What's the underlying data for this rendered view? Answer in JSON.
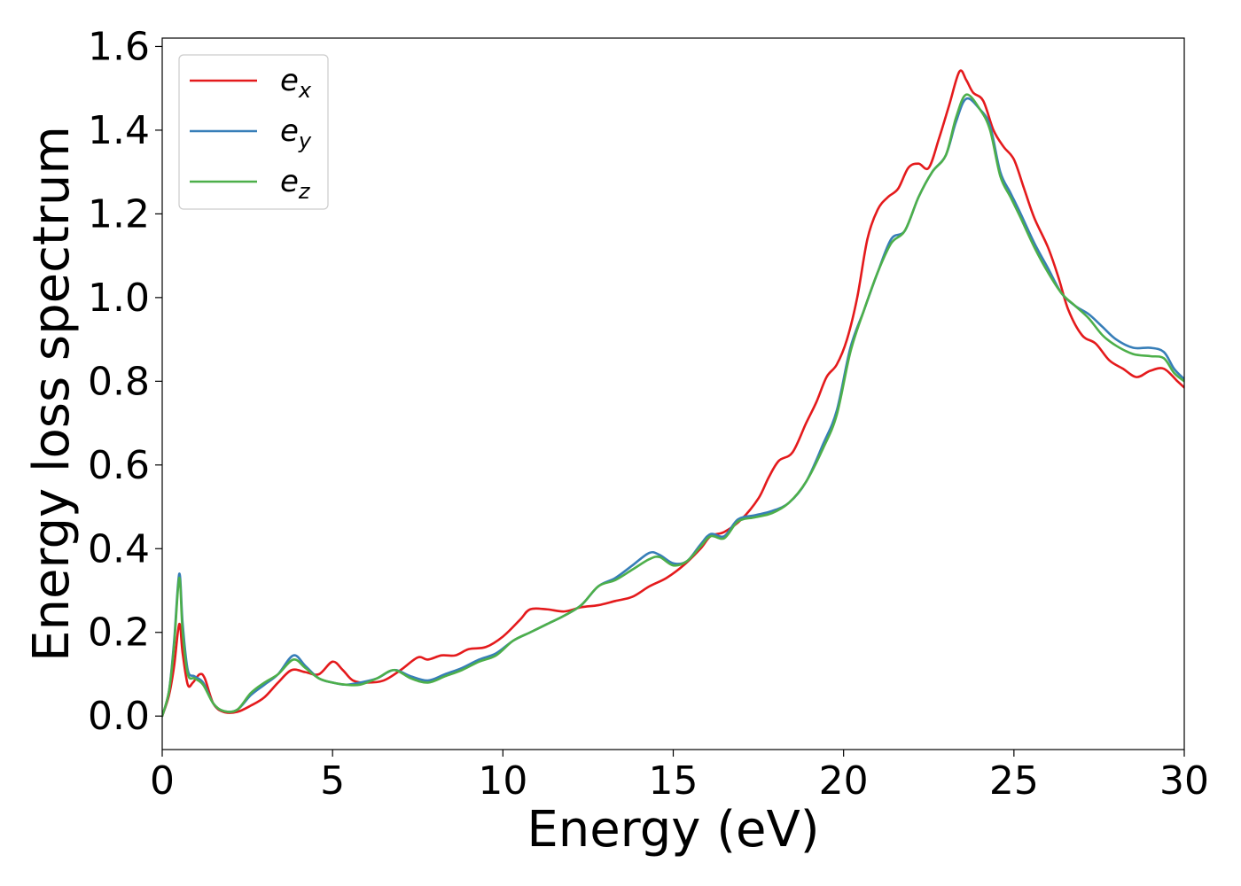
{
  "chart_data": {
    "type": "line",
    "title": "",
    "xlabel": "Energy (eV)",
    "ylabel": "Energy loss spectrum",
    "xlim": [
      0,
      30
    ],
    "ylim": [
      -0.08,
      1.62
    ],
    "xticks": [
      0,
      5,
      10,
      15,
      20,
      25,
      30
    ],
    "xtick_labels": [
      "0",
      "5",
      "10",
      "15",
      "20",
      "25",
      "30"
    ],
    "yticks": [
      0.0,
      0.2,
      0.4,
      0.6,
      0.8,
      1.0,
      1.2,
      1.4,
      1.6
    ],
    "ytick_labels": [
      "0.0",
      "0.2",
      "0.4",
      "0.6",
      "0.8",
      "1.0",
      "1.2",
      "1.4",
      "1.6"
    ],
    "grid": false,
    "legend_position": "top-left",
    "series": [
      {
        "name": "e",
        "subscript": "x",
        "color": "#e41a1c",
        "points": [
          [
            0,
            0.0
          ],
          [
            0.2,
            0.05
          ],
          [
            0.35,
            0.12
          ],
          [
            0.5,
            0.22
          ],
          [
            0.6,
            0.15
          ],
          [
            0.75,
            0.075
          ],
          [
            0.9,
            0.08
          ],
          [
            1.1,
            0.1
          ],
          [
            1.25,
            0.09
          ],
          [
            1.5,
            0.03
          ],
          [
            1.8,
            0.01
          ],
          [
            2.2,
            0.01
          ],
          [
            2.6,
            0.025
          ],
          [
            3.0,
            0.045
          ],
          [
            3.4,
            0.08
          ],
          [
            3.8,
            0.11
          ],
          [
            4.2,
            0.105
          ],
          [
            4.6,
            0.1
          ],
          [
            5.0,
            0.13
          ],
          [
            5.3,
            0.11
          ],
          [
            5.6,
            0.085
          ],
          [
            6.0,
            0.08
          ],
          [
            6.5,
            0.085
          ],
          [
            7.0,
            0.11
          ],
          [
            7.5,
            0.14
          ],
          [
            7.8,
            0.135
          ],
          [
            8.2,
            0.145
          ],
          [
            8.6,
            0.145
          ],
          [
            9.0,
            0.16
          ],
          [
            9.5,
            0.165
          ],
          [
            10.0,
            0.19
          ],
          [
            10.5,
            0.23
          ],
          [
            10.8,
            0.255
          ],
          [
            11.3,
            0.255
          ],
          [
            11.8,
            0.25
          ],
          [
            12.3,
            0.26
          ],
          [
            12.8,
            0.265
          ],
          [
            13.3,
            0.275
          ],
          [
            13.8,
            0.285
          ],
          [
            14.3,
            0.31
          ],
          [
            14.8,
            0.33
          ],
          [
            15.3,
            0.36
          ],
          [
            15.8,
            0.4
          ],
          [
            16.1,
            0.43
          ],
          [
            16.5,
            0.44
          ],
          [
            17.0,
            0.47
          ],
          [
            17.5,
            0.52
          ],
          [
            17.8,
            0.57
          ],
          [
            18.1,
            0.61
          ],
          [
            18.5,
            0.63
          ],
          [
            18.9,
            0.7
          ],
          [
            19.2,
            0.75
          ],
          [
            19.5,
            0.81
          ],
          [
            19.8,
            0.84
          ],
          [
            20.1,
            0.9
          ],
          [
            20.4,
            1.0
          ],
          [
            20.7,
            1.14
          ],
          [
            21.0,
            1.21
          ],
          [
            21.3,
            1.24
          ],
          [
            21.6,
            1.26
          ],
          [
            21.9,
            1.31
          ],
          [
            22.2,
            1.32
          ],
          [
            22.5,
            1.31
          ],
          [
            22.8,
            1.38
          ],
          [
            23.1,
            1.46
          ],
          [
            23.4,
            1.54
          ],
          [
            23.6,
            1.52
          ],
          [
            23.8,
            1.49
          ],
          [
            24.1,
            1.47
          ],
          [
            24.4,
            1.4
          ],
          [
            24.7,
            1.36
          ],
          [
            25.0,
            1.33
          ],
          [
            25.3,
            1.26
          ],
          [
            25.6,
            1.19
          ],
          [
            26.0,
            1.12
          ],
          [
            26.3,
            1.05
          ],
          [
            26.6,
            0.97
          ],
          [
            27.0,
            0.91
          ],
          [
            27.4,
            0.89
          ],
          [
            27.8,
            0.85
          ],
          [
            28.2,
            0.83
          ],
          [
            28.6,
            0.81
          ],
          [
            29.0,
            0.825
          ],
          [
            29.4,
            0.83
          ],
          [
            29.8,
            0.8
          ],
          [
            30.0,
            0.785
          ]
        ]
      },
      {
        "name": "e",
        "subscript": "y",
        "color": "#377eb8",
        "points": [
          [
            0,
            0.0
          ],
          [
            0.2,
            0.06
          ],
          [
            0.35,
            0.18
          ],
          [
            0.5,
            0.34
          ],
          [
            0.6,
            0.22
          ],
          [
            0.75,
            0.11
          ],
          [
            0.95,
            0.095
          ],
          [
            1.2,
            0.08
          ],
          [
            1.5,
            0.03
          ],
          [
            1.8,
            0.012
          ],
          [
            2.2,
            0.015
          ],
          [
            2.6,
            0.05
          ],
          [
            3.0,
            0.075
          ],
          [
            3.4,
            0.1
          ],
          [
            3.85,
            0.145
          ],
          [
            4.2,
            0.12
          ],
          [
            4.6,
            0.09
          ],
          [
            5.0,
            0.08
          ],
          [
            5.4,
            0.075
          ],
          [
            5.8,
            0.08
          ],
          [
            6.3,
            0.09
          ],
          [
            6.8,
            0.11
          ],
          [
            7.3,
            0.095
          ],
          [
            7.8,
            0.085
          ],
          [
            8.3,
            0.1
          ],
          [
            8.8,
            0.115
          ],
          [
            9.3,
            0.135
          ],
          [
            9.8,
            0.15
          ],
          [
            10.3,
            0.18
          ],
          [
            10.8,
            0.2
          ],
          [
            11.3,
            0.22
          ],
          [
            11.8,
            0.24
          ],
          [
            12.3,
            0.265
          ],
          [
            12.8,
            0.31
          ],
          [
            13.3,
            0.33
          ],
          [
            13.8,
            0.36
          ],
          [
            14.3,
            0.39
          ],
          [
            14.6,
            0.385
          ],
          [
            15.0,
            0.365
          ],
          [
            15.4,
            0.37
          ],
          [
            15.8,
            0.41
          ],
          [
            16.1,
            0.435
          ],
          [
            16.5,
            0.43
          ],
          [
            16.9,
            0.47
          ],
          [
            17.4,
            0.48
          ],
          [
            17.9,
            0.49
          ],
          [
            18.4,
            0.51
          ],
          [
            18.9,
            0.56
          ],
          [
            19.4,
            0.65
          ],
          [
            19.8,
            0.73
          ],
          [
            20.2,
            0.88
          ],
          [
            20.6,
            0.97
          ],
          [
            21.0,
            1.06
          ],
          [
            21.4,
            1.14
          ],
          [
            21.8,
            1.16
          ],
          [
            22.2,
            1.24
          ],
          [
            22.6,
            1.3
          ],
          [
            23.0,
            1.34
          ],
          [
            23.3,
            1.42
          ],
          [
            23.6,
            1.475
          ],
          [
            24.0,
            1.45
          ],
          [
            24.3,
            1.41
          ],
          [
            24.6,
            1.3
          ],
          [
            24.9,
            1.25
          ],
          [
            25.2,
            1.2
          ],
          [
            25.6,
            1.13
          ],
          [
            26.0,
            1.07
          ],
          [
            26.4,
            1.01
          ],
          [
            26.8,
            0.98
          ],
          [
            27.2,
            0.96
          ],
          [
            27.6,
            0.93
          ],
          [
            28.0,
            0.9
          ],
          [
            28.5,
            0.88
          ],
          [
            29.0,
            0.88
          ],
          [
            29.4,
            0.87
          ],
          [
            29.7,
            0.83
          ],
          [
            30.0,
            0.805
          ]
        ]
      },
      {
        "name": "e",
        "subscript": "z",
        "color": "#4daf4a",
        "points": [
          [
            0,
            0.0
          ],
          [
            0.2,
            0.06
          ],
          [
            0.35,
            0.17
          ],
          [
            0.5,
            0.33
          ],
          [
            0.6,
            0.2
          ],
          [
            0.75,
            0.1
          ],
          [
            0.95,
            0.09
          ],
          [
            1.2,
            0.075
          ],
          [
            1.5,
            0.03
          ],
          [
            1.8,
            0.012
          ],
          [
            2.2,
            0.015
          ],
          [
            2.6,
            0.055
          ],
          [
            3.0,
            0.08
          ],
          [
            3.4,
            0.1
          ],
          [
            3.85,
            0.135
          ],
          [
            4.2,
            0.115
          ],
          [
            4.6,
            0.09
          ],
          [
            5.0,
            0.08
          ],
          [
            5.4,
            0.075
          ],
          [
            5.8,
            0.075
          ],
          [
            6.3,
            0.09
          ],
          [
            6.8,
            0.11
          ],
          [
            7.3,
            0.09
          ],
          [
            7.8,
            0.08
          ],
          [
            8.3,
            0.095
          ],
          [
            8.8,
            0.11
          ],
          [
            9.3,
            0.13
          ],
          [
            9.8,
            0.145
          ],
          [
            10.3,
            0.18
          ],
          [
            10.8,
            0.2
          ],
          [
            11.3,
            0.22
          ],
          [
            11.8,
            0.24
          ],
          [
            12.3,
            0.265
          ],
          [
            12.8,
            0.31
          ],
          [
            13.3,
            0.325
          ],
          [
            13.8,
            0.35
          ],
          [
            14.3,
            0.375
          ],
          [
            14.6,
            0.38
          ],
          [
            15.0,
            0.36
          ],
          [
            15.4,
            0.37
          ],
          [
            15.8,
            0.405
          ],
          [
            16.1,
            0.43
          ],
          [
            16.5,
            0.425
          ],
          [
            16.9,
            0.465
          ],
          [
            17.4,
            0.475
          ],
          [
            17.9,
            0.485
          ],
          [
            18.4,
            0.51
          ],
          [
            18.9,
            0.56
          ],
          [
            19.4,
            0.64
          ],
          [
            19.8,
            0.72
          ],
          [
            20.2,
            0.87
          ],
          [
            20.6,
            0.97
          ],
          [
            21.0,
            1.06
          ],
          [
            21.4,
            1.13
          ],
          [
            21.8,
            1.16
          ],
          [
            22.2,
            1.24
          ],
          [
            22.6,
            1.3
          ],
          [
            23.0,
            1.34
          ],
          [
            23.3,
            1.43
          ],
          [
            23.6,
            1.485
          ],
          [
            24.0,
            1.45
          ],
          [
            24.3,
            1.4
          ],
          [
            24.6,
            1.29
          ],
          [
            24.9,
            1.24
          ],
          [
            25.2,
            1.19
          ],
          [
            25.6,
            1.12
          ],
          [
            26.0,
            1.06
          ],
          [
            26.4,
            1.01
          ],
          [
            26.8,
            0.98
          ],
          [
            27.2,
            0.95
          ],
          [
            27.6,
            0.91
          ],
          [
            28.0,
            0.885
          ],
          [
            28.5,
            0.865
          ],
          [
            29.0,
            0.86
          ],
          [
            29.4,
            0.855
          ],
          [
            29.7,
            0.82
          ],
          [
            30.0,
            0.8
          ]
        ]
      }
    ]
  }
}
